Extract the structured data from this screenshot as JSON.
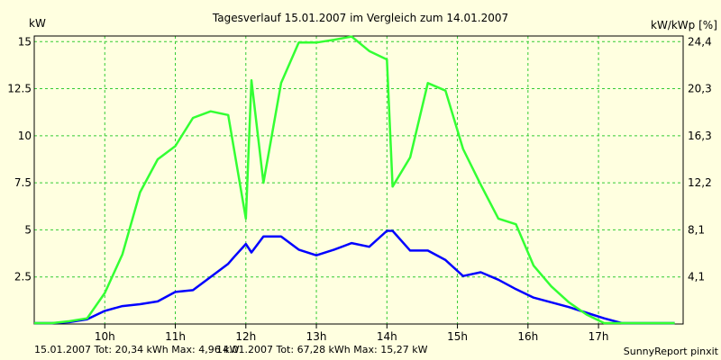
{
  "chart_data": {
    "type": "line",
    "title": "Tagesverlauf 15.01.2007 im Vergleich zum 14.01.2007",
    "ylabel_left": "kW",
    "ylabel_right": "kW/kWp [%]",
    "ylim": [
      0,
      15.3
    ],
    "yticks_left": [
      "2.5",
      "5",
      "7.5",
      "10",
      "12.5",
      "15"
    ],
    "yticks_left_values": [
      2.5,
      5,
      7.5,
      10,
      12.5,
      15
    ],
    "yticks_right": [
      "4,1",
      "8,1",
      "12,2",
      "16,3",
      "20,3",
      "24,4"
    ],
    "xlim": [
      9.0,
      18.2
    ],
    "xtick_values": [
      10,
      11,
      12,
      13,
      14,
      15,
      16,
      17
    ],
    "xtick_labels": [
      "10h",
      "11h",
      "12h",
      "13h",
      "14h",
      "15h",
      "16h",
      "17h"
    ],
    "grid": true,
    "series": [
      {
        "name": "15.01.2007",
        "color": "#0000ff",
        "x": [
          9.0,
          9.25,
          9.5,
          9.75,
          10.0,
          10.25,
          10.5,
          10.75,
          11.0,
          11.25,
          11.5,
          11.75,
          11.83,
          12.0,
          12.08,
          12.25,
          12.5,
          12.75,
          13.0,
          13.25,
          13.5,
          13.75,
          14.0,
          14.08,
          14.33,
          14.58,
          14.83,
          15.08,
          15.33,
          15.58,
          15.83,
          16.08,
          16.33,
          16.58,
          16.83,
          17.08,
          17.33,
          17.58,
          17.83,
          18.08
        ],
        "values": [
          0.05,
          0.05,
          0.1,
          0.25,
          0.7,
          0.95,
          1.05,
          1.2,
          1.7,
          1.8,
          2.5,
          3.2,
          3.55,
          4.25,
          3.8,
          4.65,
          4.65,
          3.95,
          3.65,
          3.95,
          4.3,
          4.1,
          4.95,
          4.95,
          3.9,
          3.9,
          3.4,
          2.55,
          2.75,
          2.35,
          1.85,
          1.4,
          1.15,
          0.9,
          0.6,
          0.3,
          0.05,
          0.05,
          0.05,
          0.05
        ]
      },
      {
        "name": "14.01.2007",
        "color": "#33ff33",
        "x": [
          9.0,
          9.25,
          9.5,
          9.75,
          10.0,
          10.25,
          10.5,
          10.75,
          11.0,
          11.25,
          11.5,
          11.75,
          12.0,
          12.08,
          12.25,
          12.5,
          12.75,
          13.0,
          13.25,
          13.5,
          13.75,
          14.0,
          14.08,
          14.33,
          14.58,
          14.83,
          15.08,
          15.33,
          15.58,
          15.83,
          16.08,
          16.33,
          16.58,
          16.83,
          17.08,
          17.33,
          17.58,
          17.83,
          18.08
        ],
        "values": [
          0.05,
          0.05,
          0.15,
          0.3,
          1.65,
          3.7,
          7.0,
          8.75,
          9.45,
          10.95,
          11.3,
          11.1,
          5.6,
          12.95,
          7.5,
          12.8,
          14.95,
          14.95,
          15.1,
          15.27,
          14.5,
          14.05,
          7.3,
          8.85,
          12.8,
          12.4,
          9.3,
          7.4,
          5.6,
          5.3,
          3.1,
          2.0,
          1.15,
          0.5,
          0.05,
          0.05,
          0.05,
          0.05,
          0.05
        ]
      }
    ],
    "footer": {
      "series1_text": "15.01.2007 Tot: 20,34 kWh Max: 4,96 kW",
      "series2_text": "14.01.2007 Tot: 67,28 kWh Max: 15,27 kW",
      "credit": "SunnyReport pinxit"
    },
    "colors": {
      "background": "#ffffe0",
      "grid": "#33cc33",
      "axis": "#000000"
    }
  }
}
